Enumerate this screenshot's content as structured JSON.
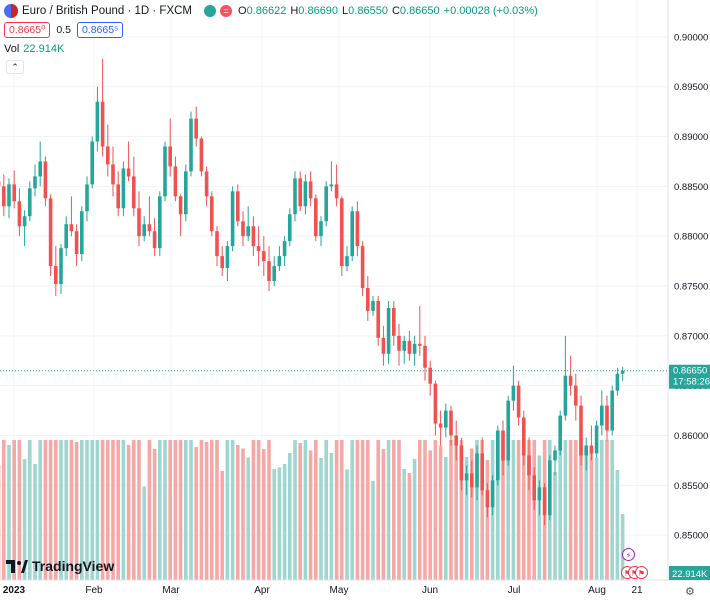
{
  "legend": {
    "symbol_title": "Euro / British Pound · 1D · FXCM",
    "ohlc": [
      {
        "k": "O",
        "v": "0.86622"
      },
      {
        "k": "H",
        "v": "0.86690"
      },
      {
        "k": "L",
        "v": "0.86550"
      },
      {
        "k": "C",
        "v": "0.86650"
      }
    ],
    "change": "+0.00028 (+0.03%)",
    "sell_price": "0.8665⁰",
    "spread": "0.5",
    "buy_price": "0.8665⁵",
    "vol_label": "Vol",
    "vol_value": "22.914K",
    "collapse_glyph": "⌃"
  },
  "branding": {
    "name": "TradingView"
  },
  "icons": {
    "settings": "gear-icon",
    "lightning": "lightning-icon",
    "flag": "flag-icon"
  },
  "colors": {
    "up": "#26a69a",
    "down": "#ef5350",
    "vol_up": "#9fd6cf",
    "vol_down": "#f5a8a5",
    "price_line": "#26a69a",
    "grid": "#f0f3fa"
  },
  "chart_data": {
    "type": "candlestick",
    "title": "Euro / British Pound · 1D · FXCM",
    "y_axis": {
      "ticks": [
        "0.90000",
        "0.89500",
        "0.89000",
        "0.88500",
        "0.88000",
        "0.87500",
        "0.87000",
        "0.86500",
        "0.86000",
        "0.85500",
        "0.85000"
      ],
      "range": [
        0.8455,
        0.9037
      ],
      "side": "right"
    },
    "x_axis": {
      "labels": [
        "2023",
        "Feb",
        "Mar",
        "Apr",
        "May",
        "Jun",
        "Jul",
        "Aug",
        "21"
      ]
    },
    "last_price": {
      "value": "0.86650",
      "countdown": "17:58:26"
    },
    "volume_last": "22.914K",
    "candles_approx": [
      [
        0.8855,
        0.8872,
        0.8838,
        0.885
      ],
      [
        0.885,
        0.8862,
        0.882,
        0.883
      ],
      [
        0.883,
        0.8858,
        0.8818,
        0.8852
      ],
      [
        0.8852,
        0.8866,
        0.8828,
        0.8835
      ],
      [
        0.8835,
        0.8848,
        0.88,
        0.881
      ],
      [
        0.881,
        0.8826,
        0.879,
        0.882
      ],
      [
        0.882,
        0.8855,
        0.8815,
        0.8848
      ],
      [
        0.8848,
        0.8872,
        0.884,
        0.886
      ],
      [
        0.886,
        0.8895,
        0.885,
        0.8875
      ],
      [
        0.8875,
        0.888,
        0.883,
        0.8838
      ],
      [
        0.8838,
        0.8842,
        0.876,
        0.877
      ],
      [
        0.877,
        0.879,
        0.874,
        0.8752
      ],
      [
        0.8752,
        0.8792,
        0.8742,
        0.8788
      ],
      [
        0.8788,
        0.882,
        0.878,
        0.8812
      ],
      [
        0.8812,
        0.884,
        0.88,
        0.8805
      ],
      [
        0.8805,
        0.8812,
        0.877,
        0.8782
      ],
      [
        0.8782,
        0.883,
        0.8775,
        0.8825
      ],
      [
        0.8825,
        0.886,
        0.8815,
        0.8852
      ],
      [
        0.8852,
        0.89,
        0.8848,
        0.8895
      ],
      [
        0.8895,
        0.895,
        0.8885,
        0.8935
      ],
      [
        0.8935,
        0.8978,
        0.888,
        0.889
      ],
      [
        0.889,
        0.8912,
        0.886,
        0.8872
      ],
      [
        0.8872,
        0.889,
        0.884,
        0.8852
      ],
      [
        0.8852,
        0.8865,
        0.882,
        0.8828
      ],
      [
        0.8828,
        0.8875,
        0.882,
        0.8868
      ],
      [
        0.8868,
        0.8895,
        0.8855,
        0.886
      ],
      [
        0.886,
        0.888,
        0.882,
        0.8828
      ],
      [
        0.8828,
        0.8845,
        0.879,
        0.88
      ],
      [
        0.88,
        0.882,
        0.8795,
        0.8812
      ],
      [
        0.8812,
        0.884,
        0.88,
        0.8805
      ],
      [
        0.8805,
        0.8818,
        0.878,
        0.8788
      ],
      [
        0.8788,
        0.8845,
        0.878,
        0.884
      ],
      [
        0.884,
        0.8895,
        0.8835,
        0.889
      ],
      [
        0.889,
        0.8918,
        0.886,
        0.887
      ],
      [
        0.887,
        0.888,
        0.8835,
        0.884
      ],
      [
        0.884,
        0.8842,
        0.88,
        0.8822
      ],
      [
        0.8822,
        0.8872,
        0.8815,
        0.8865
      ],
      [
        0.8865,
        0.8925,
        0.886,
        0.8918
      ],
      [
        0.8918,
        0.893,
        0.889,
        0.8898
      ],
      [
        0.8898,
        0.89,
        0.886,
        0.8865
      ],
      [
        0.8865,
        0.887,
        0.883,
        0.884
      ],
      [
        0.884,
        0.8845,
        0.88,
        0.8805
      ],
      [
        0.8805,
        0.881,
        0.877,
        0.878
      ],
      [
        0.878,
        0.879,
        0.876,
        0.8768
      ],
      [
        0.8768,
        0.8795,
        0.8755,
        0.879
      ],
      [
        0.879,
        0.885,
        0.8785,
        0.8845
      ],
      [
        0.8845,
        0.8852,
        0.881,
        0.8815
      ],
      [
        0.8815,
        0.8825,
        0.879,
        0.88
      ],
      [
        0.88,
        0.883,
        0.8795,
        0.881
      ],
      [
        0.881,
        0.882,
        0.878,
        0.879
      ],
      [
        0.879,
        0.881,
        0.877,
        0.8785
      ],
      [
        0.8785,
        0.88,
        0.876,
        0.8775
      ],
      [
        0.8775,
        0.879,
        0.8745,
        0.8755
      ],
      [
        0.8755,
        0.878,
        0.875,
        0.877
      ],
      [
        0.877,
        0.879,
        0.8765,
        0.878
      ],
      [
        0.878,
        0.88,
        0.877,
        0.8795
      ],
      [
        0.8795,
        0.8828,
        0.879,
        0.8822
      ],
      [
        0.8822,
        0.8865,
        0.8815,
        0.8858
      ],
      [
        0.8858,
        0.8865,
        0.8825,
        0.883
      ],
      [
        0.883,
        0.8862,
        0.8822,
        0.8855
      ],
      [
        0.8855,
        0.8865,
        0.883,
        0.8838
      ],
      [
        0.8838,
        0.8842,
        0.8795,
        0.88
      ],
      [
        0.88,
        0.882,
        0.879,
        0.8815
      ],
      [
        0.8815,
        0.8855,
        0.881,
        0.885
      ],
      [
        0.885,
        0.8875,
        0.8845,
        0.8852
      ],
      [
        0.8852,
        0.8872,
        0.883,
        0.8838
      ],
      [
        0.8838,
        0.884,
        0.876,
        0.877
      ],
      [
        0.877,
        0.879,
        0.8765,
        0.878
      ],
      [
        0.878,
        0.883,
        0.8775,
        0.8825
      ],
      [
        0.8825,
        0.8835,
        0.878,
        0.879
      ],
      [
        0.879,
        0.8795,
        0.874,
        0.8748
      ],
      [
        0.8748,
        0.876,
        0.8715,
        0.8725
      ],
      [
        0.8725,
        0.874,
        0.872,
        0.8735
      ],
      [
        0.8735,
        0.874,
        0.869,
        0.8698
      ],
      [
        0.8698,
        0.871,
        0.867,
        0.8682
      ],
      [
        0.8682,
        0.8735,
        0.8672,
        0.8728
      ],
      [
        0.8728,
        0.8735,
        0.869,
        0.87
      ],
      [
        0.87,
        0.8712,
        0.867,
        0.8685
      ],
      [
        0.8685,
        0.87,
        0.8672,
        0.8695
      ],
      [
        0.8695,
        0.8705,
        0.8675,
        0.8682
      ],
      [
        0.8682,
        0.87,
        0.867,
        0.8692
      ],
      [
        0.8692,
        0.873,
        0.868,
        0.869
      ],
      [
        0.869,
        0.87,
        0.8655,
        0.8668
      ],
      [
        0.8668,
        0.8675,
        0.864,
        0.8652
      ],
      [
        0.8652,
        0.8655,
        0.86,
        0.8612
      ],
      [
        0.8612,
        0.8625,
        0.859,
        0.8608
      ],
      [
        0.8608,
        0.8632,
        0.8598,
        0.8625
      ],
      [
        0.8625,
        0.863,
        0.859,
        0.86
      ],
      [
        0.86,
        0.8615,
        0.8575,
        0.859
      ],
      [
        0.859,
        0.8598,
        0.8545,
        0.8555
      ],
      [
        0.8555,
        0.857,
        0.854,
        0.8562
      ],
      [
        0.8562,
        0.8575,
        0.8538,
        0.8548
      ],
      [
        0.8548,
        0.859,
        0.8535,
        0.8582
      ],
      [
        0.8582,
        0.8598,
        0.854,
        0.8545
      ],
      [
        0.8545,
        0.8552,
        0.8518,
        0.8528
      ],
      [
        0.8528,
        0.856,
        0.852,
        0.8555
      ],
      [
        0.8555,
        0.861,
        0.855,
        0.8605
      ],
      [
        0.8605,
        0.8615,
        0.856,
        0.8575
      ],
      [
        0.8575,
        0.864,
        0.857,
        0.8635
      ],
      [
        0.8635,
        0.867,
        0.8625,
        0.865
      ],
      [
        0.865,
        0.8655,
        0.861,
        0.8618
      ],
      [
        0.8618,
        0.8625,
        0.857,
        0.858
      ],
      [
        0.858,
        0.8598,
        0.8545,
        0.856
      ],
      [
        0.856,
        0.8568,
        0.8525,
        0.8535
      ],
      [
        0.8535,
        0.8555,
        0.852,
        0.8548
      ],
      [
        0.8548,
        0.8552,
        0.851,
        0.852
      ],
      [
        0.852,
        0.858,
        0.8515,
        0.8575
      ],
      [
        0.8575,
        0.859,
        0.856,
        0.8585
      ],
      [
        0.8585,
        0.8625,
        0.858,
        0.862
      ],
      [
        0.862,
        0.87,
        0.8615,
        0.866
      ],
      [
        0.866,
        0.868,
        0.864,
        0.865
      ],
      [
        0.865,
        0.8662,
        0.8615,
        0.863
      ],
      [
        0.863,
        0.864,
        0.857,
        0.858
      ],
      [
        0.858,
        0.8598,
        0.8565,
        0.859
      ],
      [
        0.859,
        0.861,
        0.8575,
        0.8582
      ],
      [
        0.8582,
        0.8615,
        0.8578,
        0.861
      ],
      [
        0.861,
        0.8645,
        0.86,
        0.863
      ],
      [
        0.863,
        0.864,
        0.8595,
        0.8605
      ],
      [
        0.8605,
        0.865,
        0.86,
        0.8645
      ],
      [
        0.8645,
        0.8668,
        0.864,
        0.8662
      ],
      [
        0.8662,
        0.8669,
        0.8655,
        0.8665
      ]
    ]
  }
}
